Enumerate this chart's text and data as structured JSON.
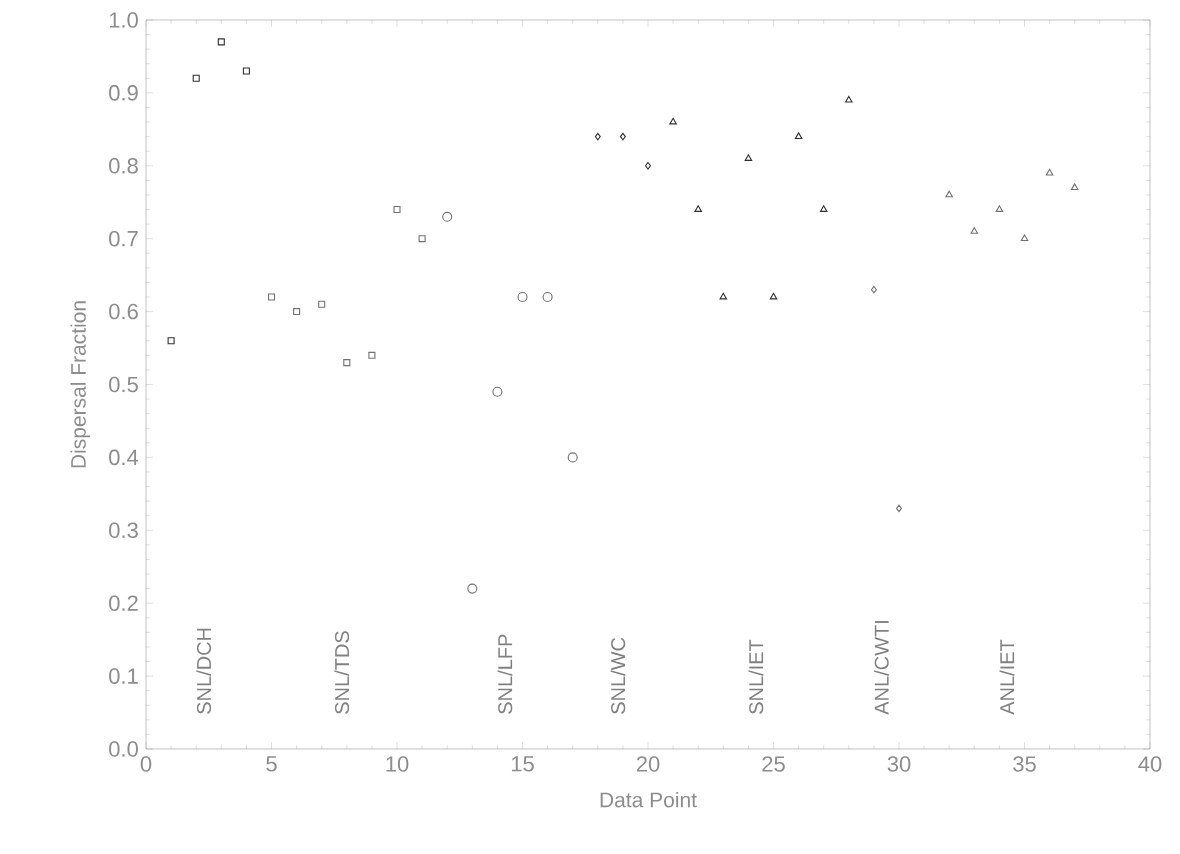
{
  "chart_data": {
    "type": "scatter",
    "xlabel": "Data Point",
    "ylabel": "Dispersal Fraction",
    "xlim": [
      0,
      40
    ],
    "xticks": [
      0,
      5,
      10,
      15,
      20,
      25,
      30,
      35,
      40
    ],
    "ylim": [
      0,
      1
    ],
    "yticks": [
      {
        "value": 0,
        "label": "0.0"
      },
      0.1,
      0.2,
      0.3,
      0.4,
      0.5,
      0.6,
      0.7,
      0.8,
      0.9,
      {
        "value": 1,
        "label": "1.0"
      }
    ],
    "grid": false,
    "annotations": [
      "SNL/DCH",
      "SNL/TDS",
      "SNL/LFP",
      "SNL/WC",
      "SNL/IET",
      "ANL/CWTI",
      "ANL/IET"
    ],
    "series": [
      {
        "marker": "square",
        "color": "#303030",
        "x": [
          1,
          2,
          3,
          4
        ],
        "values": [
          0.56,
          0.92,
          0.97,
          0.93
        ]
      },
      {
        "marker": "square",
        "color": "#707070",
        "x": [
          5,
          6,
          7,
          8,
          9,
          10,
          11
        ],
        "values": [
          0.62,
          0.6,
          0.61,
          0.53,
          0.54,
          0.74,
          0.7
        ]
      },
      {
        "marker": "circle",
        "color": "#707070",
        "x": [
          12,
          13,
          14,
          15,
          16,
          17
        ],
        "values": [
          0.73,
          0.22,
          0.49,
          0.62,
          0.62,
          0.4
        ]
      },
      {
        "marker": "diamond",
        "color": "#303030",
        "x": [
          18,
          19,
          20
        ],
        "values": [
          0.84,
          0.84,
          0.8
        ]
      },
      {
        "marker": "triangle",
        "color": "#303030",
        "x": [
          21,
          22,
          23,
          24,
          25,
          26,
          27,
          28
        ],
        "values": [
          0.86,
          0.74,
          0.62,
          0.81,
          0.62,
          0.84,
          0.74,
          0.89
        ]
      },
      {
        "marker": "diamond",
        "color": "#707070",
        "x": [
          29,
          30
        ],
        "values": [
          0.63,
          0.33
        ]
      },
      {
        "marker": "triangle",
        "color": "#707070",
        "x": [
          32,
          33,
          34,
          35,
          36,
          37
        ],
        "values": [
          0.76,
          0.71,
          0.74,
          0.7,
          0.79,
          0.77
        ]
      }
    ]
  }
}
